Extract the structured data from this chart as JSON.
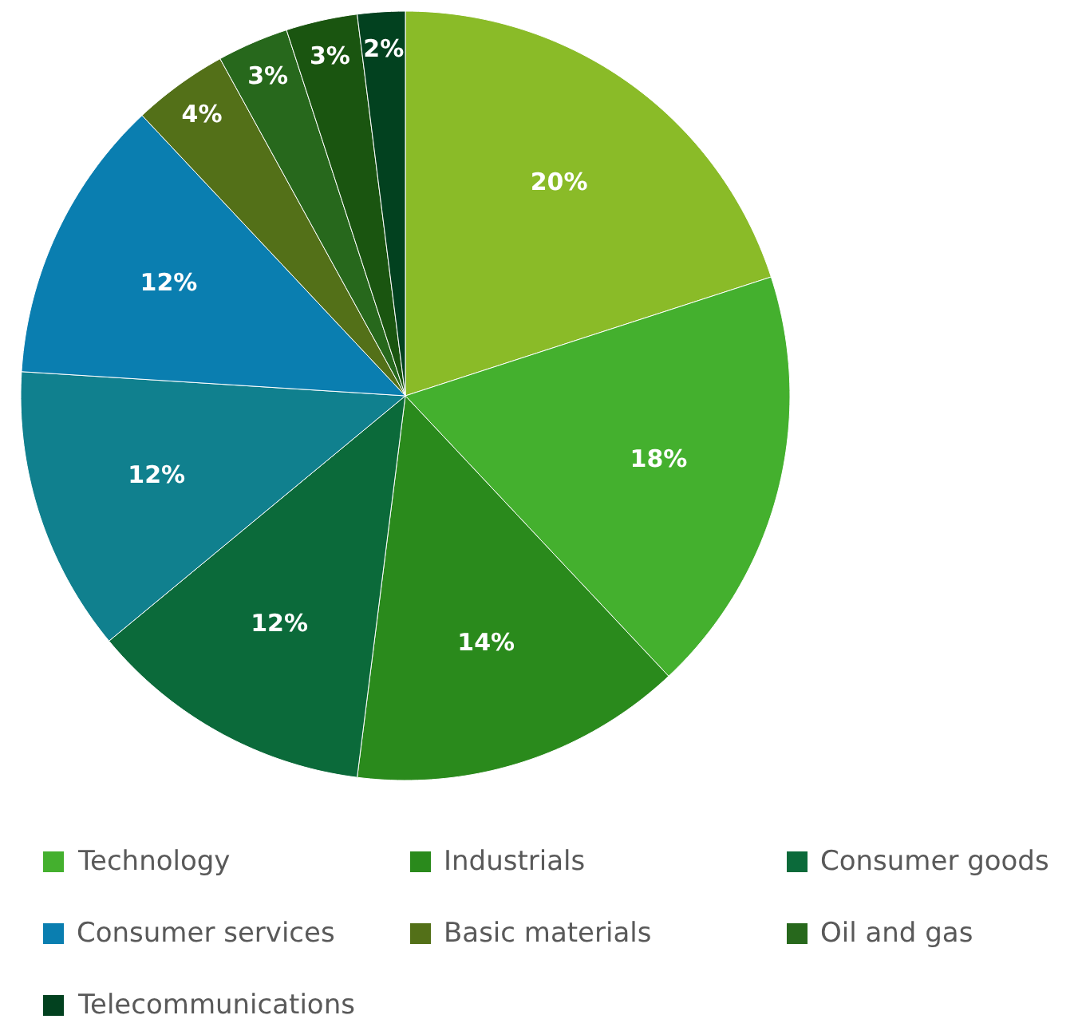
{
  "chart_data": {
    "type": "pie",
    "categories": [
      null,
      "Technology",
      "Industrials",
      "Consumer goods",
      null,
      "Consumer services",
      "Basic materials",
      "Oil and gas",
      null,
      "Telecommunications"
    ],
    "values": [
      20,
      18,
      14,
      12,
      12,
      12,
      4,
      3,
      3,
      2
    ],
    "value_labels": [
      "20%",
      "18%",
      "14%",
      "12%",
      "12%",
      "12%",
      "4%",
      "3%",
      "3%",
      "2%"
    ],
    "colors": [
      "#8abb28",
      "#44b02e",
      "#2a8a1c",
      "#0b6a3a",
      "#10808e",
      "#0a7eb0",
      "#537018",
      "#27681c",
      "#1a5510",
      "#02411f"
    ],
    "legend": "bottom"
  }
}
